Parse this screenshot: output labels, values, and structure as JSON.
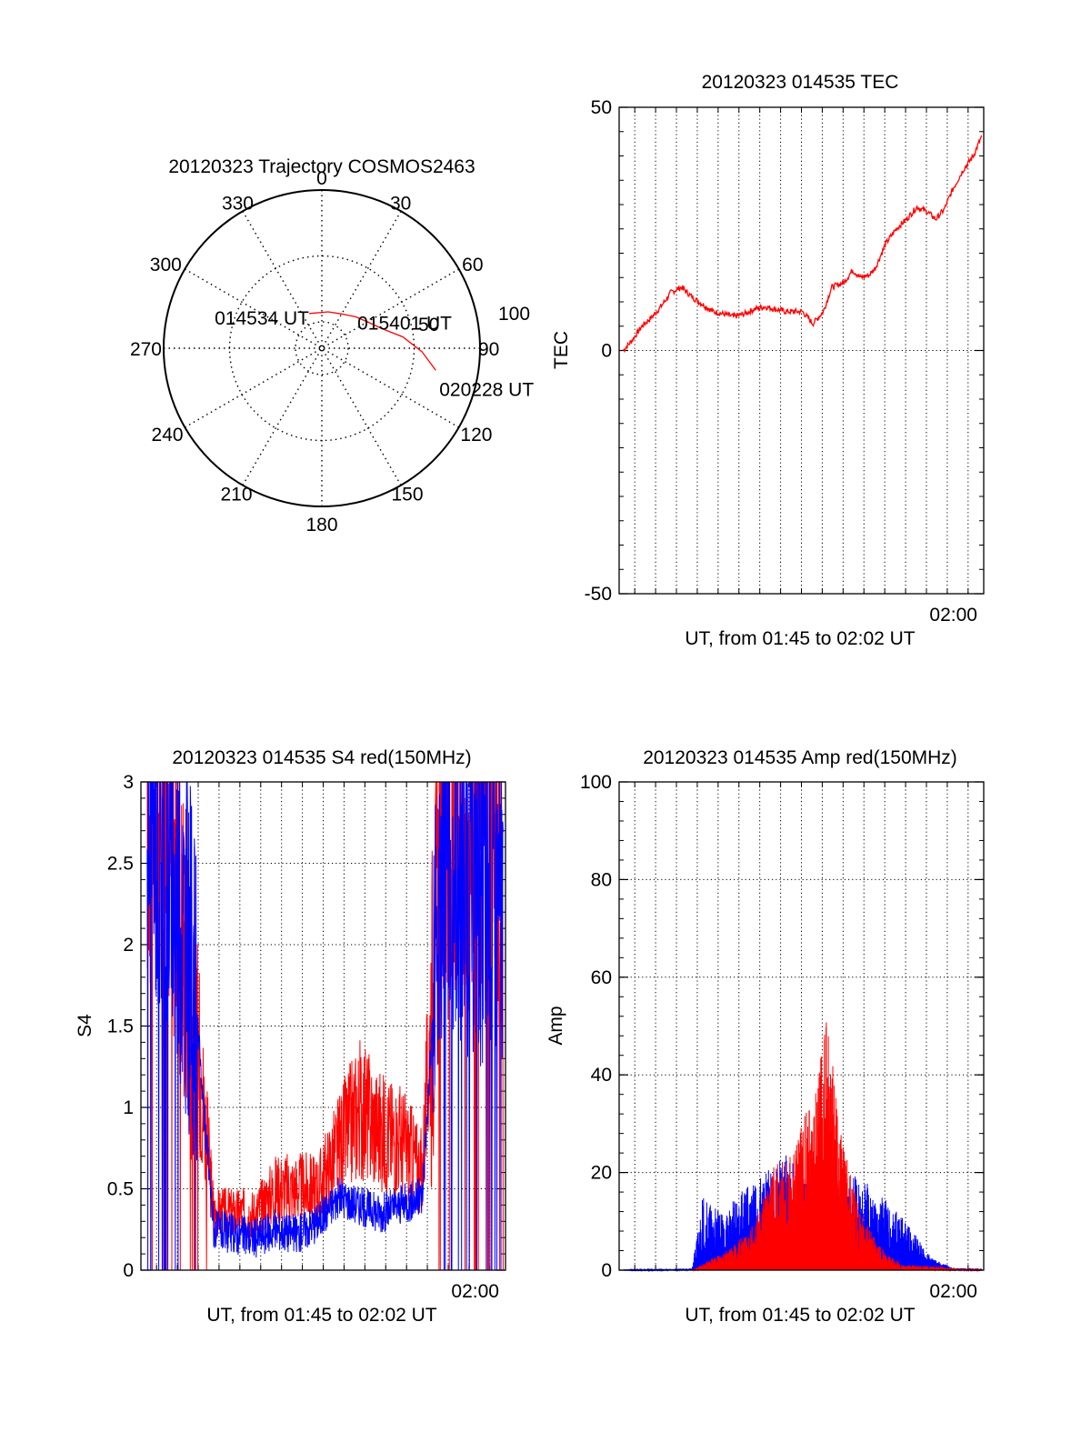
{
  "colors": {
    "red": "#ff0000",
    "blue": "#0000ff",
    "axis": "#000000",
    "grid": "#000000"
  },
  "chart_data": [
    {
      "id": "trajectory",
      "type": "polar",
      "title": "20120323 Trajectory COSMOS2463",
      "azimuth_labels": [
        "0",
        "30",
        "60",
        "90",
        "120",
        "150",
        "180",
        "210",
        "240",
        "270",
        "300",
        "330"
      ],
      "radius_labels": [
        "50",
        "100"
      ],
      "track": {
        "points": [
          {
            "az": 340,
            "el": 92
          },
          {
            "az": 10,
            "el": 92
          },
          {
            "az": 30,
            "el": 90
          },
          {
            "az": 47,
            "el": 85
          },
          {
            "az": 60,
            "el": 80
          },
          {
            "az": 72,
            "el": 72
          },
          {
            "az": 82,
            "el": 58
          },
          {
            "az": 92,
            "el": 44
          },
          {
            "az": 101,
            "el": 32
          }
        ],
        "labels": [
          {
            "text": "014534 UT",
            "at": 0
          },
          {
            "text": "015401 UT",
            "at": 3
          },
          {
            "text": "020228 UT",
            "at": 8
          }
        ]
      }
    },
    {
      "id": "tec",
      "type": "line",
      "title": "20120323 014535 TEC",
      "ylabel": "TEC",
      "xlabel": "UT, from 01:45 to 02:02 UT",
      "xlim": [
        0,
        17.5
      ],
      "ylim": [
        -50,
        50
      ],
      "yticks": [
        "50",
        "0",
        "-50"
      ],
      "xtick_label": "02:00",
      "series": [
        {
          "name": "TEC",
          "color": "#ff0000",
          "x": [
            0.2,
            0.6,
            1.1,
            1.6,
            2.0,
            2.5,
            3.0,
            3.5,
            4.5,
            5.5,
            6.0,
            6.5,
            7.0,
            8.0,
            8.8,
            9.3,
            9.8,
            10.2,
            10.8,
            11.2,
            11.6,
            12.0,
            12.3,
            12.8,
            13.3,
            13.8,
            14.3,
            14.8,
            15.2,
            15.6,
            16.0,
            16.5,
            17.0,
            17.4
          ],
          "y": [
            0,
            2,
            5,
            7,
            9,
            12,
            13,
            11,
            8,
            7,
            7.5,
            8.5,
            9,
            8,
            8,
            5.5,
            8,
            13,
            14,
            16.5,
            15,
            15.5,
            17,
            22,
            25,
            27,
            29.5,
            28.5,
            27,
            29,
            33,
            37,
            40,
            44
          ]
        }
      ]
    },
    {
      "id": "s4",
      "type": "line",
      "title": "20120323 014535 S4 red(150MHz)",
      "ylabel": "S4",
      "xlabel": "UT, from 01:45 to 02:02 UT",
      "xlim": [
        0,
        17.5
      ],
      "ylim": [
        0,
        3
      ],
      "yticks": [
        "3",
        "2.5",
        "2",
        "1.5",
        "1",
        "0.5",
        "0"
      ],
      "xtick_label": "02:00",
      "series": [
        {
          "name": "S4 red",
          "color": "#ff0000",
          "x": [
            0.5,
            1.5,
            2.5,
            3.5,
            4.5,
            5.5,
            6.5,
            7.5,
            8.5,
            9.5,
            10.5,
            11.5,
            12.5,
            13.5,
            14.5,
            15.5,
            16.5,
            17.2
          ],
          "y": [
            2.8,
            2.6,
            1.7,
            0.35,
            0.35,
            0.35,
            0.5,
            0.5,
            0.5,
            0.75,
            1.0,
            0.85,
            0.8,
            0.6,
            2.8,
            2.7,
            2.6,
            2.5
          ]
        },
        {
          "name": "S4 blue",
          "color": "#0000ff",
          "x": [
            0.5,
            1.5,
            2.5,
            3.5,
            4.5,
            5.5,
            6.5,
            7.5,
            8.5,
            9.5,
            10.5,
            11.5,
            12.5,
            13.5,
            14.5,
            15.5,
            16.5,
            17.2
          ],
          "y": [
            2.7,
            2.5,
            1.8,
            0.25,
            0.22,
            0.2,
            0.25,
            0.22,
            0.3,
            0.45,
            0.4,
            0.35,
            0.4,
            0.45,
            2.6,
            2.4,
            2.3,
            2.2
          ]
        }
      ]
    },
    {
      "id": "amp",
      "type": "line",
      "title": "20120323 014535 Amp red(150MHz)",
      "ylabel": "Amp",
      "xlabel": "UT, from 01:45 to 02:02 UT",
      "xlim": [
        0,
        17.5
      ],
      "ylim": [
        0,
        100
      ],
      "yticks": [
        "100",
        "80",
        "60",
        "40",
        "20",
        "0"
      ],
      "xtick_label": "02:00",
      "series": [
        {
          "name": "Amp red",
          "color": "#ff0000",
          "x": [
            0,
            3.5,
            4.5,
            5.5,
            6.5,
            7.5,
            8.5,
            9.5,
            10.0,
            10.5,
            11.5,
            12.5,
            13.5,
            17.5
          ],
          "y": [
            0,
            0,
            2,
            4,
            8,
            18,
            22,
            30,
            45,
            25,
            10,
            4,
            1,
            0
          ]
        },
        {
          "name": "Amp blue",
          "color": "#0000ff",
          "x": [
            0,
            3.5,
            4.0,
            5.0,
            6.0,
            7.0,
            8.0,
            9.0,
            10.0,
            11.0,
            12.0,
            13.0,
            14.0,
            15.0,
            16.0,
            17.5
          ],
          "y": [
            0,
            0.3,
            12,
            9,
            14,
            16,
            19,
            18,
            15,
            16,
            14,
            11,
            7,
            2,
            0.4,
            0.3
          ]
        }
      ]
    }
  ]
}
